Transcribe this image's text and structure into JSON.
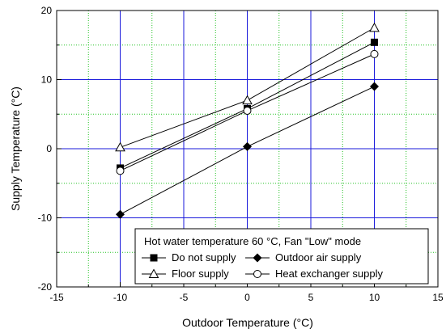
{
  "chart_data": {
    "type": "line",
    "title": "",
    "xlabel": "Outdoor Temperature (°C)",
    "ylabel": "Supply Temperature (°C)",
    "xlim": [
      -15,
      15
    ],
    "ylim": [
      -20,
      20
    ],
    "x_ticks": [
      -15,
      -10,
      -5,
      0,
      5,
      10,
      15
    ],
    "y_ticks": [
      -20,
      -10,
      0,
      10,
      20
    ],
    "x_tick_labels": [
      "-15",
      "-10",
      "-5",
      "0",
      "5",
      "10",
      "15"
    ],
    "y_tick_labels": [
      "-20",
      "-10",
      "0",
      "10",
      "20"
    ],
    "grid": {
      "major": "solid blue lines at the labeled ticks",
      "minor": "dotted green lines midway between major ticks"
    },
    "legend_title": "Hot water temperature 60 °C, Fan \"Low\" mode",
    "legend_position": "bottom-right",
    "x": [
      -10,
      0,
      10
    ],
    "series": [
      {
        "name": "Do not supply",
        "marker": "filled-square",
        "values": [
          -2.8,
          5.8,
          15.4
        ]
      },
      {
        "name": "Outdoor air supply",
        "marker": "filled-diamond",
        "values": [
          -9.5,
          0.3,
          9.0
        ]
      },
      {
        "name": "Floor supply",
        "marker": "open-triangle",
        "values": [
          0.2,
          7.0,
          17.5
        ]
      },
      {
        "name": "Heat exchanger supply",
        "marker": "open-circle",
        "values": [
          -3.2,
          5.5,
          13.7
        ]
      }
    ],
    "colors": {
      "major_grid": "#1a1adb",
      "minor_grid": "#22c222",
      "series_line": "#000000",
      "frame": "#000000"
    }
  }
}
